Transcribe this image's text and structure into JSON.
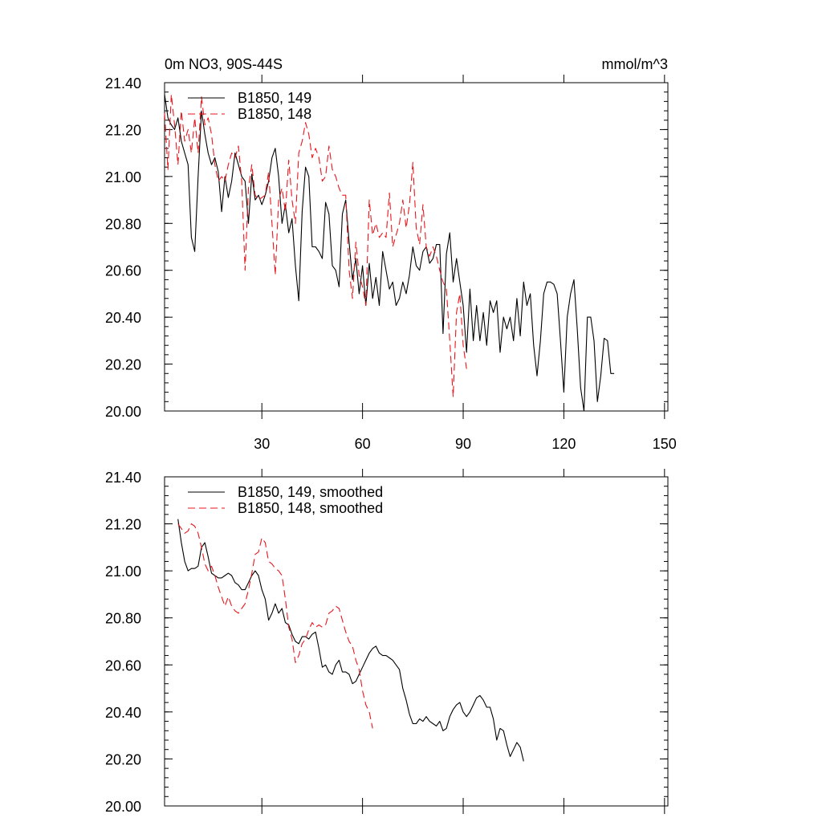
{
  "header": {
    "title": "0m NO3, 90S-44S",
    "units": "mmol/m^3"
  },
  "colors": {
    "run149": "#000000",
    "run148": "#e8161c"
  },
  "chart_data": [
    {
      "type": "line",
      "title": "0m NO3, 90S-44S",
      "units": "mmol/m^3",
      "xlim": [
        1,
        151
      ],
      "ylim": [
        20.0,
        21.4
      ],
      "xticks": [
        30,
        60,
        90,
        120,
        150
      ],
      "yticks": [
        20.0,
        20.2,
        20.4,
        20.6,
        20.8,
        21.0,
        21.2,
        21.4
      ],
      "ytick_labels": [
        "20.00",
        "20.20",
        "20.40",
        "20.60",
        "20.80",
        "21.00",
        "21.20",
        "21.40"
      ],
      "legend_position": "top-left",
      "series": [
        {
          "name": "B1850, 149",
          "style": "solid",
          "color": "#000000",
          "x_start": 1,
          "values": [
            21.35,
            21.25,
            21.22,
            21.2,
            21.25,
            21.15,
            21.1,
            21.05,
            20.74,
            20.68,
            21.0,
            21.28,
            21.18,
            21.1,
            21.05,
            21.08,
            21.02,
            20.85,
            21.0,
            20.91,
            20.98,
            21.1,
            21.05,
            21.0,
            20.98,
            20.8,
            21.01,
            20.9,
            20.92,
            20.88,
            20.92,
            20.98,
            21.08,
            21.12,
            21.0,
            20.8,
            20.88,
            20.76,
            20.82,
            20.62,
            20.47,
            20.85,
            21.04,
            21.0,
            20.7,
            20.7,
            20.68,
            20.65,
            20.89,
            20.84,
            20.62,
            20.6,
            20.53,
            20.84,
            20.9,
            20.72,
            20.56,
            20.65,
            20.5,
            20.62,
            20.45,
            20.63,
            20.48,
            20.57,
            20.45,
            20.68,
            20.6,
            20.52,
            20.55,
            20.45,
            20.48,
            20.55,
            20.5,
            20.58,
            20.7,
            20.62,
            20.6,
            20.68,
            20.7,
            20.63,
            20.65,
            20.71,
            20.71,
            20.33,
            20.67,
            20.76,
            20.55,
            20.65,
            20.55,
            20.45,
            20.25,
            20.52,
            20.3,
            20.45,
            20.3,
            20.42,
            20.28,
            20.47,
            20.42,
            20.47,
            20.25,
            20.4,
            20.35,
            20.4,
            20.3,
            20.48,
            20.32,
            20.55,
            20.45,
            20.5,
            20.28,
            20.15,
            20.3,
            20.5,
            20.55,
            20.55,
            20.54,
            20.5,
            20.3,
            20.08,
            20.4,
            20.5,
            20.56,
            20.35,
            20.1,
            20.0,
            20.4,
            20.4,
            20.3,
            20.04,
            20.15,
            20.31,
            20.3,
            20.16,
            20.16
          ]
        },
        {
          "name": "B1850, 148",
          "style": "dashed",
          "color": "#e8161c",
          "x_start": 1,
          "values": [
            21.27,
            21.03,
            21.35,
            21.22,
            21.05,
            21.28,
            21.15,
            21.2,
            21.1,
            21.25,
            21.1,
            21.34,
            21.22,
            21.25,
            21.18,
            21.05,
            20.98,
            21.0,
            20.98,
            21.05,
            21.1,
            21.08,
            21.13,
            20.98,
            20.6,
            20.95,
            21.05,
            20.92,
            20.9,
            20.91,
            20.92,
            21.02,
            20.8,
            20.58,
            20.9,
            20.95,
            20.85,
            21.07,
            20.9,
            20.8,
            21.1,
            21.15,
            21.23,
            21.18,
            21.08,
            21.12,
            21.08,
            20.98,
            21.0,
            21.13,
            21.03,
            21.0,
            20.95,
            20.92,
            20.92,
            20.6,
            20.48,
            20.72,
            20.58,
            20.53,
            20.45,
            20.9,
            20.75,
            20.8,
            20.74,
            20.76,
            20.74,
            20.93,
            20.7,
            20.75,
            20.8,
            20.9,
            20.78,
            20.88,
            21.06,
            20.78,
            20.71,
            20.88,
            20.7,
            20.66,
            20.7,
            20.66,
            20.6,
            20.55,
            20.52,
            20.3,
            20.06,
            20.42,
            20.5,
            20.28,
            20.18
          ]
        }
      ]
    },
    {
      "type": "line",
      "xlim": [
        1,
        151
      ],
      "ylim": [
        20.0,
        21.4
      ],
      "xticks": [
        30,
        60,
        90,
        120,
        150
      ],
      "yticks": [
        20.0,
        20.2,
        20.4,
        20.6,
        20.8,
        21.0,
        21.2,
        21.4
      ],
      "ytick_labels": [
        "20.00",
        "20.20",
        "20.40",
        "20.60",
        "20.80",
        "21.00",
        "21.20",
        "21.40"
      ],
      "legend_position": "top-left",
      "series": [
        {
          "name": "B1850, 149, smoothed",
          "style": "solid",
          "color": "#000000",
          "x_start": 5,
          "values": [
            21.22,
            21.12,
            21.04,
            21.0,
            21.01,
            21.01,
            21.02,
            21.1,
            21.12,
            21.06,
            20.99,
            20.98,
            20.97,
            20.97,
            20.98,
            20.99,
            20.98,
            20.95,
            20.94,
            20.92,
            20.92,
            20.95,
            20.98,
            21.0,
            20.98,
            20.92,
            20.88,
            20.79,
            20.82,
            20.86,
            20.82,
            20.84,
            20.78,
            20.77,
            20.73,
            20.7,
            20.69,
            20.72,
            20.72,
            20.71,
            20.73,
            20.74,
            20.67,
            20.59,
            20.6,
            20.57,
            20.56,
            20.6,
            20.62,
            20.57,
            20.57,
            20.56,
            20.52,
            20.53,
            20.56,
            20.59,
            20.62,
            20.65,
            20.67,
            20.68,
            20.65,
            20.64,
            20.64,
            20.63,
            20.62,
            20.6,
            20.58,
            20.5,
            20.45,
            20.39,
            20.35,
            20.35,
            20.37,
            20.36,
            20.38,
            20.36,
            20.35,
            20.34,
            20.36,
            20.32,
            20.33,
            20.38,
            20.41,
            20.43,
            20.44,
            20.4,
            20.38,
            20.4,
            20.43,
            20.46,
            20.47,
            20.45,
            20.42,
            20.42,
            20.37,
            20.28,
            20.33,
            20.32,
            20.26,
            20.21,
            20.24,
            20.27,
            20.25,
            20.19
          ]
        },
        {
          "name": "B1850, 148, smoothed",
          "style": "dashed",
          "color": "#e8161c",
          "x_start": 5,
          "values": [
            21.2,
            21.18,
            21.16,
            21.17,
            21.2,
            21.19,
            21.16,
            21.1,
            21.03,
            21.0,
            21.02,
            20.98,
            20.93,
            20.89,
            20.85,
            20.89,
            20.85,
            20.83,
            20.82,
            20.84,
            20.86,
            20.92,
            20.99,
            21.07,
            21.08,
            21.14,
            21.12,
            21.04,
            21.03,
            21.01,
            21.0,
            20.98,
            20.88,
            20.76,
            20.71,
            20.61,
            20.64,
            20.69,
            20.71,
            20.75,
            20.78,
            20.76,
            20.77,
            20.76,
            20.77,
            20.82,
            20.83,
            20.85,
            20.84,
            20.79,
            20.74,
            20.7,
            20.68,
            20.62,
            20.58,
            20.49,
            20.43,
            20.4,
            20.33
          ]
        }
      ]
    }
  ]
}
